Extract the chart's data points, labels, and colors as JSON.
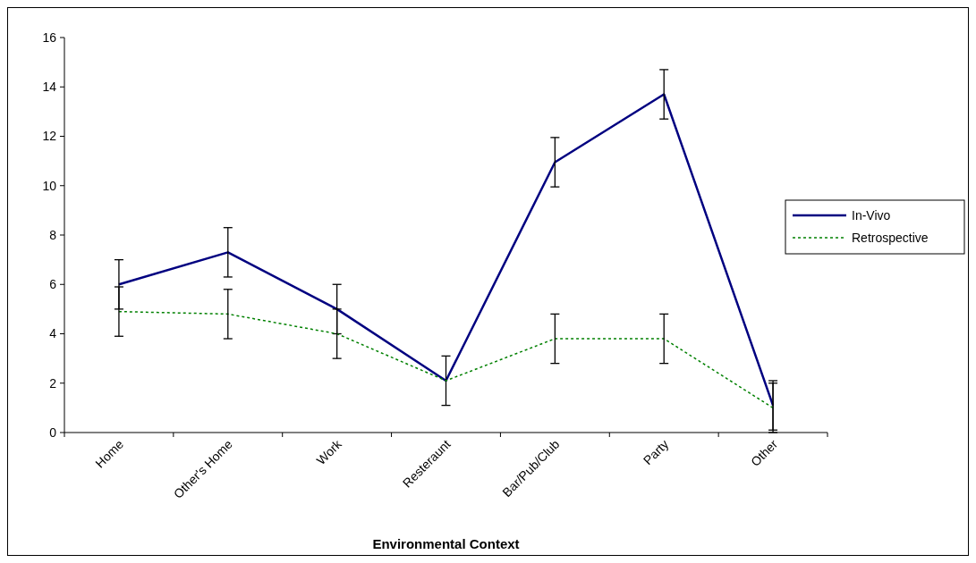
{
  "chart_data": {
    "type": "line",
    "xlabel": "Environmental Context",
    "categories": [
      "Home",
      "Other's Home",
      "Work",
      "Resteraunt",
      "Bar/Pub/Club",
      "Party",
      "Other"
    ],
    "ylim": [
      0,
      16
    ],
    "yticks": [
      0,
      2,
      4,
      6,
      8,
      10,
      12,
      14,
      16
    ],
    "grid": false,
    "legend": "right",
    "marker": "none",
    "series": [
      {
        "name": "In-Vivo",
        "color": "#000080",
        "line_style": "solid",
        "values": [
          6.0,
          7.3,
          5.0,
          2.1,
          10.95,
          13.7,
          1.1
        ],
        "errors": [
          1,
          1,
          1,
          1,
          1,
          1,
          1
        ]
      },
      {
        "name": "Retrospective",
        "color": "#008000",
        "line_style": "dotted",
        "values": [
          4.9,
          4.8,
          4.0,
          2.1,
          3.8,
          3.8,
          1.0
        ],
        "errors": [
          1,
          1,
          1,
          null,
          1,
          1,
          1
        ]
      }
    ]
  }
}
